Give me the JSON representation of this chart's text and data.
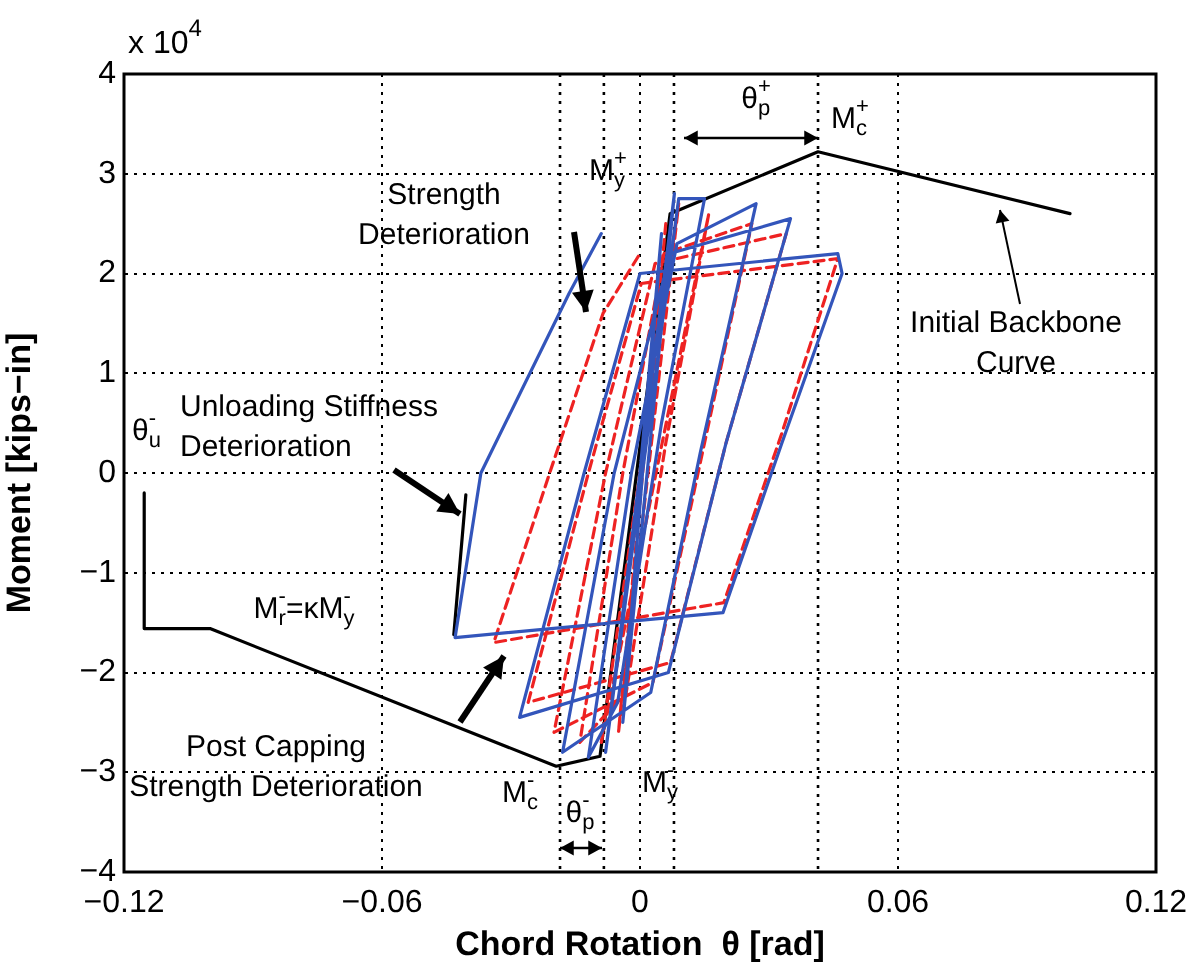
{
  "chart_data": {
    "type": "line",
    "xlabel": "Chord Rotation  θ [rad]",
    "ylabel": "Moment [kips−in]",
    "xlim": [
      -0.12,
      0.12
    ],
    "xticks": [
      -0.12,
      -0.06,
      0,
      0.06,
      0.12
    ],
    "ylim": [
      -4,
      4
    ],
    "yticks": [
      -4,
      -3,
      -2,
      -1,
      0,
      1,
      2,
      3,
      4
    ],
    "grid": true,
    "legend": false,
    "marker": "none",
    "series": [
      {
        "color": "#3355bb",
        "line_style": "solid",
        "x": [
          0,
          0.005,
          -0.004,
          0.008,
          -0.008,
          0.009,
          0.015,
          0.005,
          -0.0052,
          -0.012,
          -0.002,
          0.0086,
          0.027,
          0.014,
          0.0025,
          -0.018,
          -0.006,
          0.007,
          0.035,
          0.02,
          0.0066,
          -0.028,
          -0.013,
          0.0,
          0.046,
          0.047,
          0.033,
          0.0193,
          -0.043,
          -0.037,
          -0.0165,
          -0.009
        ],
        "values": [
          0,
          2.4,
          -2.5,
          2.8,
          -2.8,
          2.75,
          2.75,
          0.5,
          -2.3,
          -2.85,
          0,
          2.3,
          2.7,
          0.2,
          -2.2,
          -2.8,
          0,
          2.2,
          2.55,
          0.3,
          -2.0,
          -2.45,
          0,
          2.0,
          2.2,
          2.0,
          0.3,
          -1.4,
          -1.65,
          0,
          1.8,
          2.4
        ]
      },
      {
        "color": "#ee2222",
        "line_style": "dashed",
        "x": [
          0.006,
          -0.005,
          0.009,
          -0.009,
          0.016,
          0.006,
          -0.0032,
          -0.014,
          -0.004,
          0.0056,
          0.026,
          0.015,
          0.003,
          -0.02,
          -0.008,
          0.0035,
          0.034,
          0.02,
          0.0071,
          -0.026,
          -0.012,
          0.0003,
          0.046,
          0.033,
          0.0195,
          -0.034,
          -0.021,
          -0.0086,
          0.0
        ],
        "values": [
          2.5,
          -2.6,
          2.7,
          -2.7,
          2.6,
          0.3,
          -2.2,
          -2.7,
          0,
          2.2,
          2.5,
          0.3,
          -2.1,
          -2.6,
          0,
          2.1,
          2.4,
          0.3,
          -1.9,
          -2.3,
          0,
          1.9,
          2.15,
          0.4,
          -1.3,
          -1.7,
          0,
          1.6,
          2.2
        ]
      },
      {
        "color": "#000000",
        "line_style": "solid",
        "x": [
          -0.1153,
          -0.1153,
          -0.1,
          -0.0195,
          -0.0093,
          0.007,
          0.0414,
          0.1
        ],
        "values": [
          -0.2,
          -1.56,
          -1.56,
          -2.94,
          -2.84,
          2.6,
          3.22,
          2.6
        ]
      },
      {
        "color": "#000000",
        "line_style": "solid",
        "x": [
          -0.0405,
          -0.0433
        ],
        "values": [
          -0.22,
          -1.62
        ]
      }
    ],
    "ref_lines": [
      {
        "axis": "x",
        "value": -0.0186,
        "color": "#000000",
        "line_style": "dotted"
      },
      {
        "axis": "x",
        "value": -0.0084,
        "color": "#000000",
        "line_style": "dotted"
      },
      {
        "axis": "x",
        "value": 0.0079,
        "color": "#000000",
        "line_style": "dotted"
      },
      {
        "axis": "x",
        "value": 0.0414,
        "color": "#000000",
        "line_style": "dotted"
      }
    ],
    "annotations": [
      "x 10$^{4}$",
      "Strength\nDeterioration",
      "Initial Backbone\nCurve",
      "θ$_{u}$$^{-}$",
      "Unloading Stiffness\nDeterioration",
      "M$_{r}$$^{-}$=κM$_{y}$$^{-}$",
      "Post Capping\nStrength Deterioration",
      "M$_{c}$$^{-}$",
      "θ$_{p}$$^{-}$",
      "M$_{y}$$^{-}$",
      "M$_{y}$$^{+}$",
      "θ$_{p}$$^{+}$",
      "M$_{c}$$^{+}$"
    ]
  }
}
